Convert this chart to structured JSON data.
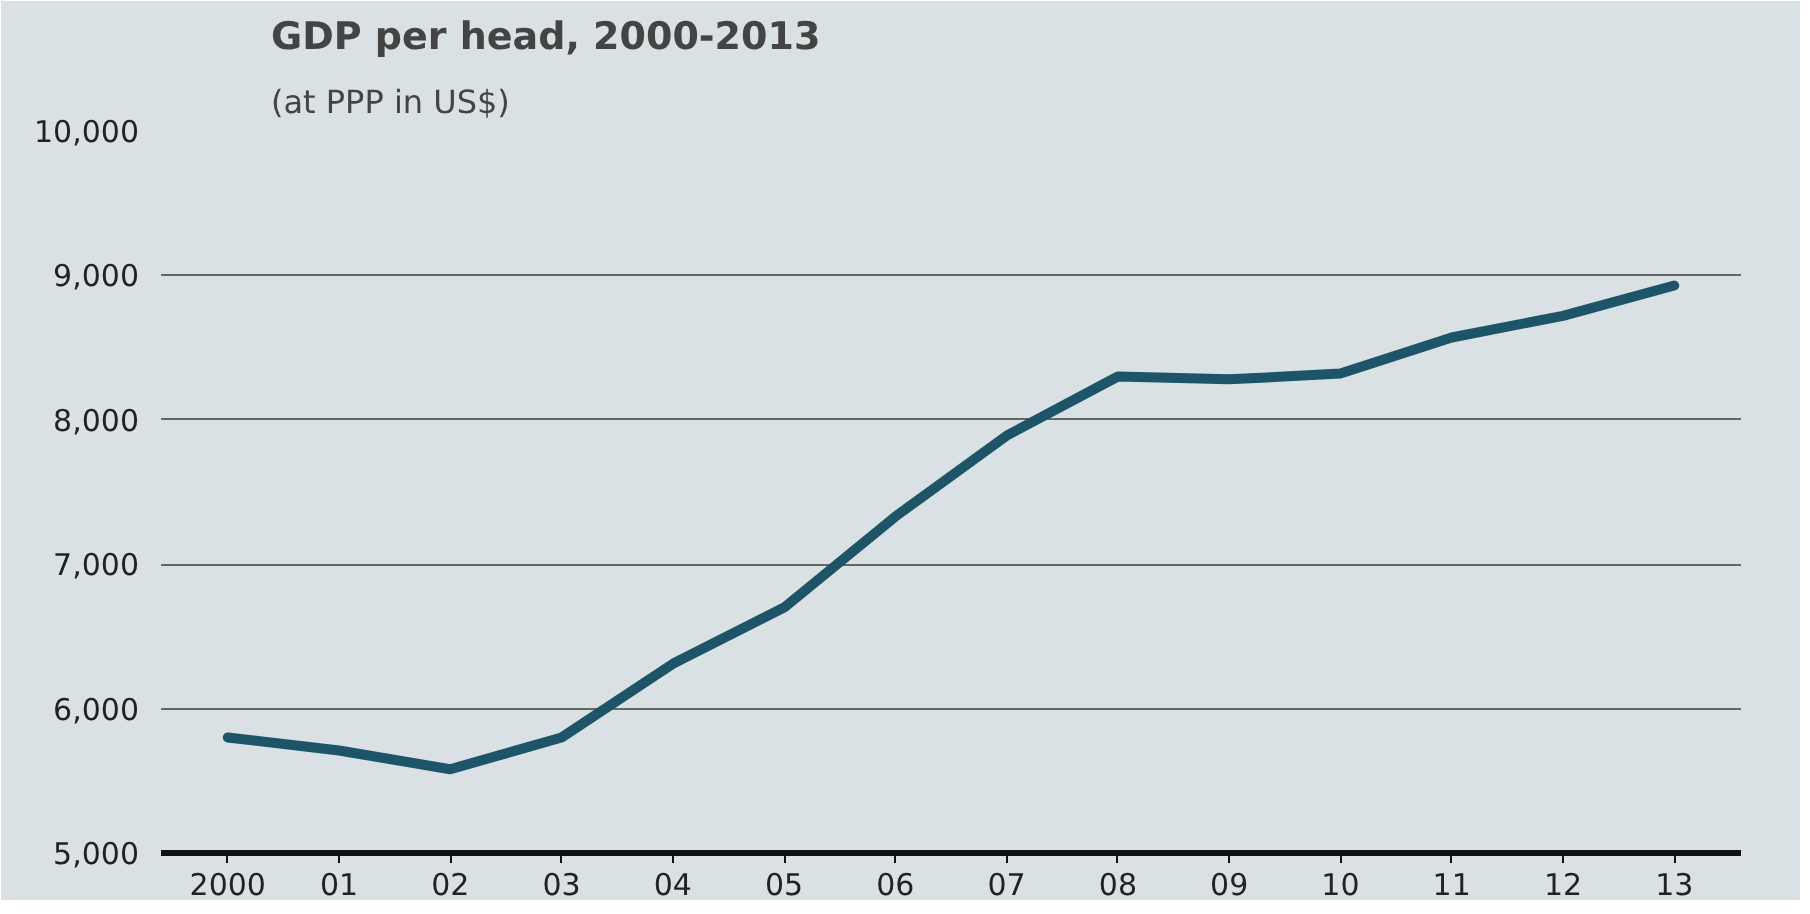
{
  "chart_data": {
    "type": "line",
    "title": "GDP per head, 2000-2013",
    "subtitle": "(at PPP in US$)",
    "categories": [
      "2000",
      "01",
      "02",
      "03",
      "04",
      "05",
      "06",
      "07",
      "08",
      "09",
      "10",
      "11",
      "12",
      "13"
    ],
    "series": [
      {
        "color": "#1d5468",
        "values": [
          5800,
          5710,
          5580,
          5800,
          6310,
          6700,
          7330,
          7890,
          8300,
          8280,
          8320,
          8570,
          8720,
          8930
        ]
      }
    ],
    "ylim": [
      5000,
      10000
    ],
    "yticks": [
      {
        "value": 5000,
        "label": "5,000"
      },
      {
        "value": 6000,
        "label": "6,000"
      },
      {
        "value": 7000,
        "label": "7,000"
      },
      {
        "value": 8000,
        "label": "8,000"
      },
      {
        "value": 9000,
        "label": "9,000"
      },
      {
        "value": 10000,
        "label": "10,000"
      }
    ],
    "grid": "y",
    "marker": "none",
    "line_style": "solid"
  }
}
